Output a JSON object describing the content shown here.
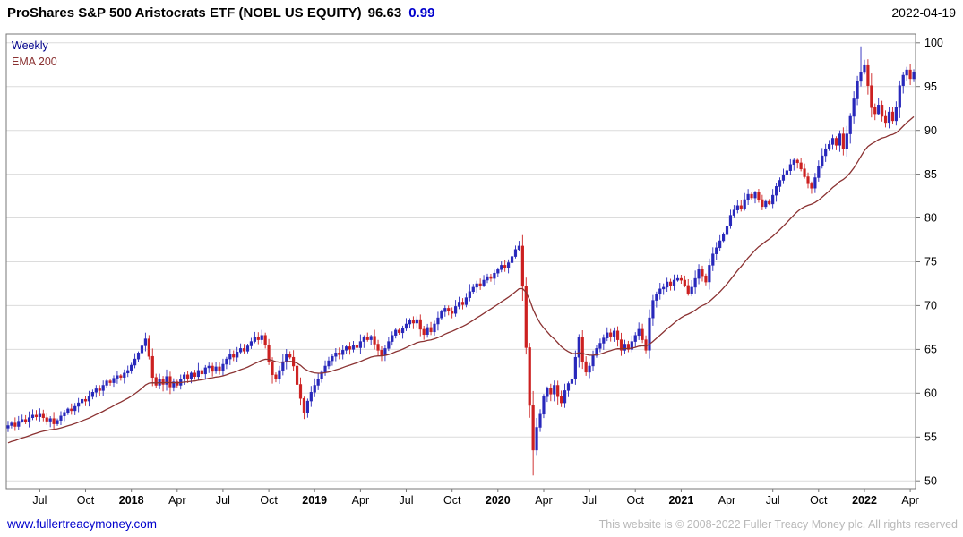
{
  "header": {
    "title": "ProShares S&P 500 Aristocrats ETF (NOBL US EQUITY)",
    "last_price": "96.63",
    "change": "0.99",
    "date": "2022-04-19"
  },
  "legend": {
    "series": "Weekly",
    "overlay": "EMA 200"
  },
  "footer": {
    "link": "www.fullertreacymoney.com",
    "copyright": "This website is © 2008-2022 Fuller Treacy Money plc. All rights reserved"
  },
  "colors": {
    "up": "#2828bb",
    "down": "#cc2020",
    "ema": "#8b3232",
    "grid": "#dcdcdc",
    "axis": "#777777",
    "accent": "#0000cd",
    "link": "#0000cc",
    "muted": "#b8b8b8"
  },
  "chart_data": {
    "type": "candlestick",
    "title": "ProShares S&P 500 Aristocrats ETF (NOBL US EQUITY)",
    "subtitle": "Weekly candles with EMA 200 overlay",
    "xlabel": "",
    "ylabel": "",
    "ylim": [
      49.1,
      101
    ],
    "yticks": [
      50,
      55,
      60,
      65,
      70,
      75,
      80,
      85,
      90,
      95,
      100
    ],
    "xticks": [
      {
        "label": "Jul",
        "week": 9,
        "year": false
      },
      {
        "label": "Oct",
        "week": 22,
        "year": false
      },
      {
        "label": "2018",
        "week": 35,
        "year": true
      },
      {
        "label": "Apr",
        "week": 48,
        "year": false
      },
      {
        "label": "Jul",
        "week": 61,
        "year": false
      },
      {
        "label": "Oct",
        "week": 74,
        "year": false
      },
      {
        "label": "2019",
        "week": 87,
        "year": true
      },
      {
        "label": "Apr",
        "week": 100,
        "year": false
      },
      {
        "label": "Jul",
        "week": 113,
        "year": false
      },
      {
        "label": "Oct",
        "week": 126,
        "year": false
      },
      {
        "label": "2020",
        "week": 139,
        "year": true
      },
      {
        "label": "Apr",
        "week": 152,
        "year": false
      },
      {
        "label": "Jul",
        "week": 165,
        "year": false
      },
      {
        "label": "Oct",
        "week": 178,
        "year": false
      },
      {
        "label": "2021",
        "week": 191,
        "year": true
      },
      {
        "label": "Apr",
        "week": 204,
        "year": false
      },
      {
        "label": "Jul",
        "week": 217,
        "year": false
      },
      {
        "label": "Oct",
        "week": 230,
        "year": false
      },
      {
        "label": "2022",
        "week": 243,
        "year": true
      },
      {
        "label": "Apr",
        "week": 256,
        "year": false
      }
    ],
    "first_open": 56.0,
    "weekly_closes": [
      56.3,
      56.6,
      56.2,
      56.8,
      57.0,
      56.7,
      57.2,
      57.5,
      57.3,
      57.6,
      57.2,
      56.8,
      57.1,
      56.5,
      56.9,
      57.4,
      57.8,
      58.2,
      58.0,
      58.5,
      58.9,
      59.3,
      59.1,
      59.6,
      60.1,
      60.5,
      60.3,
      60.9,
      61.4,
      61.2,
      61.7,
      62.0,
      61.8,
      62.3,
      62.6,
      63.2,
      63.9,
      64.6,
      65.4,
      66.2,
      64.2,
      61.8,
      60.9,
      61.6,
      61.0,
      61.9,
      60.7,
      61.3,
      60.9,
      61.6,
      62.1,
      61.7,
      62.3,
      61.9,
      62.6,
      62.2,
      62.9,
      63.1,
      62.5,
      63.0,
      62.6,
      63.3,
      63.9,
      64.4,
      64.1,
      64.7,
      65.1,
      64.8,
      65.4,
      65.9,
      66.4,
      66.1,
      66.6,
      65.5,
      63.6,
      62.1,
      61.6,
      62.6,
      63.6,
      64.4,
      64.1,
      63.1,
      61.0,
      59.4,
      57.8,
      59.1,
      60.1,
      60.9,
      61.6,
      62.4,
      63.1,
      63.7,
      64.2,
      64.6,
      64.4,
      64.9,
      65.3,
      65.0,
      65.5,
      65.2,
      65.9,
      66.4,
      66.1,
      66.5,
      65.6,
      64.9,
      64.3,
      65.1,
      65.9,
      66.6,
      67.2,
      66.9,
      67.4,
      67.9,
      68.3,
      68.0,
      68.4,
      67.3,
      66.7,
      67.5,
      67.0,
      67.9,
      68.6,
      69.3,
      69.7,
      69.4,
      69.1,
      69.9,
      70.4,
      70.1,
      70.9,
      71.6,
      72.1,
      72.5,
      72.3,
      72.9,
      73.3,
      73.1,
      73.7,
      74.1,
      74.6,
      74.3,
      74.9,
      75.6,
      76.4,
      76.8,
      72.2,
      65.2,
      58.6,
      53.5,
      56.1,
      57.6,
      59.6,
      60.6,
      59.9,
      60.9,
      59.6,
      58.9,
      60.3,
      61.1,
      61.6,
      64.1,
      66.4,
      63.6,
      62.4,
      63.1,
      64.3,
      65.1,
      65.7,
      66.3,
      66.9,
      66.5,
      67.1,
      66.1,
      64.9,
      65.6,
      65.0,
      65.9,
      66.6,
      67.3,
      66.1,
      64.9,
      68.6,
      70.6,
      71.3,
      71.9,
      72.1,
      72.7,
      72.3,
      72.9,
      73.1,
      72.9,
      72.3,
      71.4,
      72.1,
      73.1,
      74.1,
      73.4,
      72.7,
      74.6,
      75.9,
      76.6,
      77.4,
      78.1,
      79.1,
      80.3,
      80.9,
      81.4,
      81.1,
      82.1,
      82.7,
      82.3,
      82.9,
      82.1,
      81.3,
      81.9,
      81.6,
      82.6,
      83.6,
      84.3,
      84.9,
      85.4,
      86.1,
      86.6,
      86.3,
      85.6,
      84.7,
      83.9,
      83.4,
      84.6,
      85.9,
      87.1,
      87.9,
      88.4,
      89.1,
      88.3,
      89.6,
      87.9,
      89.6,
      91.6,
      93.6,
      95.6,
      96.6,
      97.4,
      95.1,
      92.6,
      91.9,
      92.9,
      91.6,
      90.9,
      92.1,
      91.1,
      92.6,
      95.1,
      96.3,
      96.9,
      95.9,
      96.6
    ],
    "overrides": {
      "high": {
        "242": 99.6
      },
      "low": {
        "149": 50.6
      }
    },
    "ema": {
      "label": "EMA 200",
      "period_weeks": 30,
      "seed": 54.2
    },
    "legend_position": "top-left",
    "grid": true
  }
}
